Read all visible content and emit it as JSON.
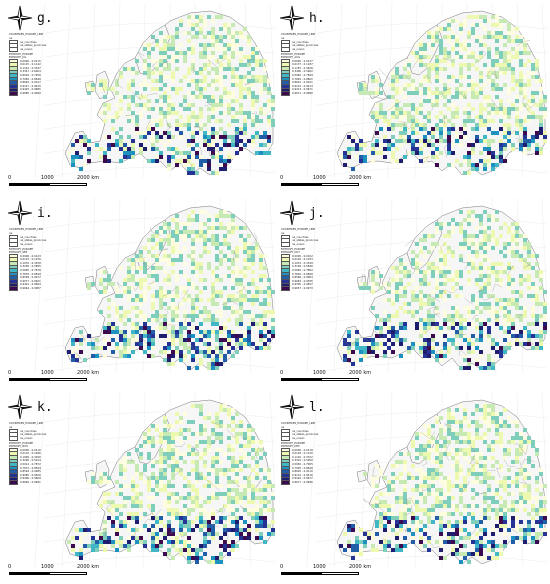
{
  "panels": [
    {
      "letter": "g.",
      "entropy_layer": "ENTROPY_JUL",
      "legend_ranges": [
        "0.0000 - 0.0115",
        "0.0115 - 0.1142",
        "0.1142 - 0.3347",
        "0.3347 - 0.6004",
        "0.6004 - 0.7956",
        "0.7956 - 0.8646",
        "0.8646 - 0.9147",
        "0.9147 - 0.9425",
        "0.9425 - 0.9685",
        "0.9685 - 0.9999"
      ]
    },
    {
      "letter": "h.",
      "entropy_layer": "ENTROPY_AUG",
      "legend_ranges": [
        "0.0000 - 0.0137",
        "0.0137 - 0.1187",
        "0.1187 - 0.3406",
        "0.3406 - 0.5962",
        "0.5962 - 0.7849",
        "0.7849 - 0.8601",
        "0.8601 - 0.9101",
        "0.9101 - 0.9413",
        "0.9413 - 0.9671",
        "0.9671 - 0.9980"
      ]
    },
    {
      "letter": "i.",
      "entropy_layer": "ENTROPY_SEP",
      "legend_ranges": [
        "0.0000 - 0.0123",
        "0.0123 - 0.1076",
        "0.1076 - 0.3258",
        "0.3258 - 0.5895",
        "0.5895 - 0.7878",
        "0.7878 - 0.8599",
        "0.8599 - 0.9077",
        "0.9077 - 0.9401",
        "0.9401 - 0.9664",
        "0.9664 - 0.9987"
      ]
    },
    {
      "letter": "j.",
      "entropy_layer": "ENTROPY_OCT",
      "legend_ranges": [
        "0.0000 - 0.0102",
        "0.0102 - 0.1033",
        "0.1033 - 0.3199",
        "0.3199 - 0.5846",
        "0.5846 - 0.7802",
        "0.7802 - 0.8566",
        "0.8566 - 0.9063",
        "0.9063 - 0.9395",
        "0.9395 - 0.9657",
        "0.9657 - 0.9973"
      ]
    },
    {
      "letter": "k.",
      "entropy_layer": "ENTROPY_NOV",
      "legend_ranges": [
        "0.0000 - 0.0110",
        "0.0110 - 0.1096",
        "0.1096 - 0.3290",
        "0.3290 - 0.5914",
        "0.5914 - 0.7872",
        "0.7872 - 0.8594",
        "0.8594 - 0.9085",
        "0.9085 - 0.9406",
        "0.9406 - 0.9669",
        "0.9669 - 0.9991"
      ]
    },
    {
      "letter": "l.",
      "entropy_layer": "ENTROPY_DEC",
      "legend_ranges": [
        "0.0000 - 0.0118",
        "0.0118 - 0.1120",
        "0.1120 - 0.3322",
        "0.3322 - 0.5950",
        "0.5950 - 0.7905",
        "0.7905 - 0.8620",
        "0.8620 - 0.9110",
        "0.9110 - 0.9416",
        "0.9416 - 0.9677",
        "0.9677 - 0.9996"
      ]
    }
  ],
  "legend": {
    "title": "COUNTRIES_EUROPE_LINE",
    "sub_title": "ne",
    "items": [
      "ne_countries",
      "ne_states_provinces",
      "ne_ocean"
    ],
    "group": "ENTROPY_EUROPE"
  },
  "scale": {
    "start": "0",
    "mid": "1000",
    "end": "2000 km"
  },
  "colors": {
    "ocean": "#ffffff",
    "land": "#f6f6f6",
    "border": "#777777",
    "ramp": [
      "#fffde0",
      "#edf8b0",
      "#c7e9b4",
      "#7fcdbb",
      "#41b6c4",
      "#1d91c0",
      "#225ea8",
      "#253494",
      "#1f1d6e",
      "#3b0a4f"
    ]
  }
}
